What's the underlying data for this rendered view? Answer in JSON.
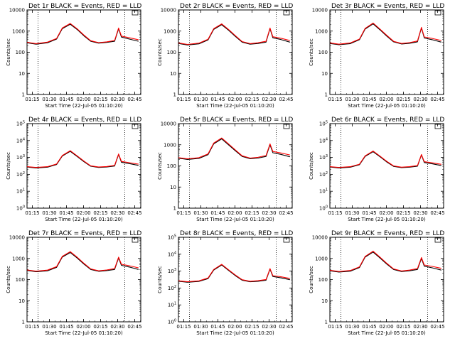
{
  "figure": {
    "line_colors": {
      "events": "#000000",
      "lld": "#ff0000"
    }
  },
  "chart_data": [
    {
      "type": "line",
      "scale": "log",
      "ytick_style": "plain",
      "title": "Det 1r BLACK = Events, RED = LLD",
      "xlabel": "Start Time (22-Jul-05 01:10:20)",
      "ylabel": "Counts/sec",
      "xticks": [
        "01:15",
        "01:30",
        "01:45",
        "02:00",
        "02:15",
        "02:30",
        "02:45"
      ],
      "ylim": [
        1,
        10000
      ],
      "yticks": [
        "1",
        "10",
        "100",
        "1000",
        "10000"
      ],
      "base": 280,
      "peak": 2100,
      "spike": 1300,
      "series": [
        {
          "values": [
            280,
            240,
            280,
            420,
            1300,
            2100,
            1200,
            600,
            330,
            270,
            290,
            330,
            1300,
            520,
            420,
            330
          ]
        },
        {
          "values": [
            295,
            255,
            300,
            450,
            1400,
            2300,
            1300,
            650,
            350,
            285,
            310,
            360,
            1400,
            580,
            480,
            390
          ]
        }
      ]
    },
    {
      "type": "line",
      "scale": "log",
      "ytick_style": "plain",
      "title": "Det 2r BLACK = Events, RED = LLD",
      "xlabel": "Start Time (22-Jul-05 01:10:20)",
      "ylabel": "Counts/sec",
      "xticks": [
        "01:15",
        "01:30",
        "01:45",
        "02:00",
        "02:15",
        "02:30",
        "02:45"
      ],
      "ylim": [
        1,
        10000
      ],
      "yticks": [
        "1",
        "10",
        "100",
        "1000",
        "10000"
      ],
      "base": 240,
      "peak": 2000,
      "spike": 1300,
      "series": [
        {
          "values": [
            260,
            220,
            250,
            380,
            1200,
            2000,
            1100,
            560,
            300,
            240,
            260,
            300,
            1300,
            480,
            400,
            300
          ]
        },
        {
          "values": [
            275,
            235,
            270,
            410,
            1300,
            2200,
            1200,
            610,
            320,
            255,
            280,
            330,
            1400,
            540,
            460,
            360
          ]
        }
      ]
    },
    {
      "type": "line",
      "scale": "log",
      "ytick_style": "plain",
      "title": "Det 3r BLACK = Events, RED = LLD",
      "xlabel": "Start Time (22-Jul-05 01:10:20)",
      "ylabel": "Counts/sec",
      "xticks": [
        "01:15",
        "01:30",
        "01:45",
        "02:00",
        "02:15",
        "02:30",
        "02:45"
      ],
      "ylim": [
        1,
        10000
      ],
      "yticks": [
        "1",
        "10",
        "100",
        "1000",
        "10000"
      ],
      "series": [
        {
          "values": [
            260,
            225,
            255,
            390,
            1250,
            2200,
            1150,
            580,
            310,
            245,
            265,
            310,
            1400,
            470,
            390,
            300
          ]
        },
        {
          "values": [
            275,
            240,
            275,
            420,
            1350,
            2400,
            1250,
            630,
            330,
            260,
            285,
            340,
            1500,
            530,
            450,
            360
          ]
        }
      ]
    },
    {
      "type": "line",
      "scale": "log",
      "ytick_style": "exp",
      "title": "Det 4r BLACK = Events, RED = LLD",
      "xlabel": "Start Time (22-Jul-05 01:10:20)",
      "ylabel": "Counts/sec",
      "xticks": [
        "01:15",
        "01:30",
        "01:45",
        "02:00",
        "02:15",
        "02:30",
        "02:45"
      ],
      "ylim": [
        1,
        100000
      ],
      "yticks": [
        "10^0",
        "10^1",
        "10^2",
        "10^3",
        "10^4",
        "10^5"
      ],
      "series": [
        {
          "values": [
            270,
            240,
            265,
            380,
            1200,
            2300,
            1150,
            560,
            300,
            255,
            270,
            310,
            1500,
            520,
            430,
            340
          ]
        },
        {
          "values": [
            285,
            255,
            285,
            410,
            1300,
            2500,
            1250,
            610,
            320,
            270,
            290,
            340,
            1600,
            580,
            490,
            400
          ]
        }
      ]
    },
    {
      "type": "line",
      "scale": "log",
      "ytick_style": "plain",
      "title": "Det 5r BLACK = Events, RED = LLD",
      "xlabel": "Start Time (22-Jul-05 01:10:20)",
      "ylabel": "Counts/sec",
      "xticks": [
        "01:15",
        "01:30",
        "01:45",
        "02:00",
        "02:15",
        "02:30",
        "02:45"
      ],
      "ylim": [
        1,
        10000
      ],
      "yticks": [
        "1",
        "10",
        "100",
        "1000",
        "10000"
      ],
      "series": [
        {
          "values": [
            230,
            200,
            225,
            340,
            1100,
            1900,
            1000,
            520,
            280,
            220,
            235,
            280,
            1000,
            420,
            350,
            270
          ]
        },
        {
          "values": [
            245,
            215,
            245,
            370,
            1200,
            2100,
            1100,
            570,
            300,
            235,
            255,
            310,
            1100,
            480,
            410,
            330
          ]
        }
      ]
    },
    {
      "type": "line",
      "scale": "log",
      "ytick_style": "exp",
      "title": "Det 6r BLACK = Events, RED = LLD",
      "xlabel": "Start Time (22-Jul-05 01:10:20)",
      "ylabel": "Counts/sec",
      "xticks": [
        "01:15",
        "01:30",
        "01:45",
        "02:00",
        "02:15",
        "02:30",
        "02:45"
      ],
      "ylim": [
        1,
        100000
      ],
      "yticks": [
        "10^0",
        "10^1",
        "10^2",
        "10^3",
        "10^4",
        "10^5"
      ],
      "series": [
        {
          "values": [
            270,
            240,
            265,
            370,
            1150,
            2200,
            1100,
            540,
            295,
            250,
            265,
            300,
            1400,
            500,
            420,
            330
          ]
        },
        {
          "values": [
            285,
            255,
            285,
            400,
            1250,
            2400,
            1200,
            590,
            315,
            265,
            285,
            330,
            1500,
            560,
            480,
            390
          ]
        }
      ]
    },
    {
      "type": "line",
      "scale": "log",
      "ytick_style": "plain",
      "title": "Det 7r BLACK = Events, RED = LLD",
      "xlabel": "Start Time (22-Jul-05 01:10:20)",
      "ylabel": "Counts/sec",
      "xticks": [
        "01:15",
        "01:30",
        "01:45",
        "02:00",
        "02:15",
        "02:30",
        "02:45"
      ],
      "ylim": [
        1,
        10000
      ],
      "yticks": [
        "1",
        "10",
        "100",
        "1000",
        "10000"
      ],
      "series": [
        {
          "values": [
            270,
            235,
            260,
            380,
            1150,
            1900,
            1050,
            540,
            300,
            245,
            265,
            300,
            1050,
            470,
            390,
            300
          ]
        },
        {
          "values": [
            285,
            250,
            280,
            410,
            1250,
            2100,
            1150,
            590,
            320,
            260,
            285,
            330,
            1150,
            530,
            450,
            360
          ]
        }
      ]
    },
    {
      "type": "line",
      "scale": "log",
      "ytick_style": "exp",
      "title": "Det 8r BLACK = Events, RED = LLD",
      "xlabel": "Start Time (22-Jul-05 01:10:20)",
      "ylabel": "Counts/sec",
      "xticks": [
        "01:15",
        "01:30",
        "01:45",
        "02:00",
        "02:15",
        "02:30",
        "02:45"
      ],
      "ylim": [
        1,
        100000
      ],
      "yticks": [
        "10^0",
        "10^1",
        "10^2",
        "10^3",
        "10^4",
        "10^5"
      ],
      "series": [
        {
          "values": [
            250,
            220,
            245,
            360,
            1150,
            2300,
            1100,
            540,
            290,
            235,
            250,
            290,
            1300,
            480,
            400,
            310
          ]
        },
        {
          "values": [
            265,
            235,
            265,
            390,
            1250,
            2500,
            1200,
            590,
            310,
            250,
            270,
            320,
            1400,
            540,
            460,
            370
          ]
        }
      ]
    },
    {
      "type": "line",
      "scale": "log",
      "ytick_style": "plain",
      "title": "Det 9r BLACK = Events, RED = LLD",
      "xlabel": "Start Time (22-Jul-05 01:10:20)",
      "ylabel": "Counts/sec",
      "xticks": [
        "01:15",
        "01:30",
        "01:45",
        "02:00",
        "02:15",
        "02:30",
        "02:45"
      ],
      "ylim": [
        1,
        10000
      ],
      "yticks": [
        "1",
        "10",
        "100",
        "1000",
        "10000"
      ],
      "series": [
        {
          "values": [
            260,
            225,
            250,
            370,
            1150,
            2000,
            1050,
            540,
            300,
            240,
            260,
            300,
            1000,
            430,
            360,
            280
          ]
        },
        {
          "values": [
            275,
            240,
            270,
            400,
            1250,
            2200,
            1150,
            590,
            320,
            255,
            280,
            330,
            1100,
            490,
            420,
            340
          ]
        }
      ]
    }
  ]
}
